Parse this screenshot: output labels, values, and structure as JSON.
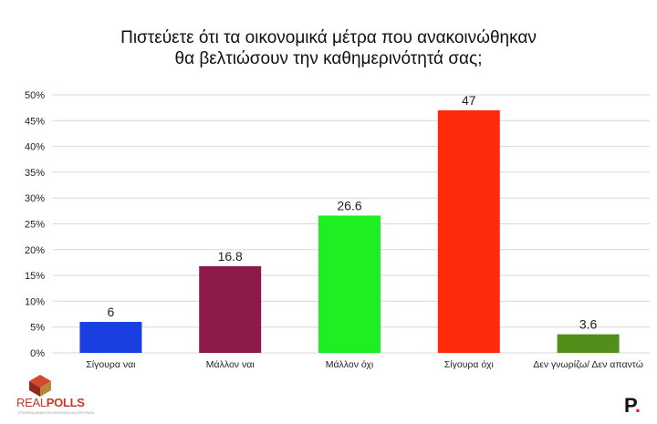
{
  "title_line1": "Πιστεύετε ότι τα οικονομικά μέτρα που ανακοινώθηκαν",
  "title_line2": "θα βελτιώσουν την καθημερινότητά σας;",
  "chart_data": {
    "type": "bar",
    "title": "Πιστεύετε ότι τα οικονομικά μέτρα που ανακοινώθηκαν θα βελτιώσουν την καθημερινότητά σας;",
    "categories": [
      "Σίγουρα ναι",
      "Μάλλον ναι",
      "Μάλλον όχι",
      "Σίγουρα όχι",
      "Δεν γνωρίζω/ Δεν απαντώ"
    ],
    "values": [
      6,
      16.8,
      26.6,
      47,
      3.6
    ],
    "data_labels": [
      "6",
      "16.8",
      "26.6",
      "47",
      "3.6"
    ],
    "colors": [
      "#1a3fe0",
      "#8e1a4c",
      "#1fef22",
      "#ff2a0a",
      "#4f8f1a"
    ],
    "ylim": [
      0,
      50
    ],
    "yticks": [
      "0%",
      "5%",
      "10%",
      "15%",
      "20%",
      "25%",
      "30%",
      "35%",
      "40%",
      "45%",
      "50%"
    ],
    "ytick_values": [
      0,
      5,
      10,
      15,
      20,
      25,
      30,
      35,
      40,
      45,
      50
    ],
    "grid": true,
    "xlabel": "",
    "ylabel": ""
  },
  "logo_left": {
    "real": "REAL",
    "polls": "POLLS",
    "tagline": "ΕΤΑΙΡΕΙΑ ΔΗΜΟΣΚΟΠΗΣΕΩΝ ΚΑΙ ΕΡΕΥΝΩΝ"
  },
  "logo_right": {
    "letter": "P",
    "dot": "."
  }
}
